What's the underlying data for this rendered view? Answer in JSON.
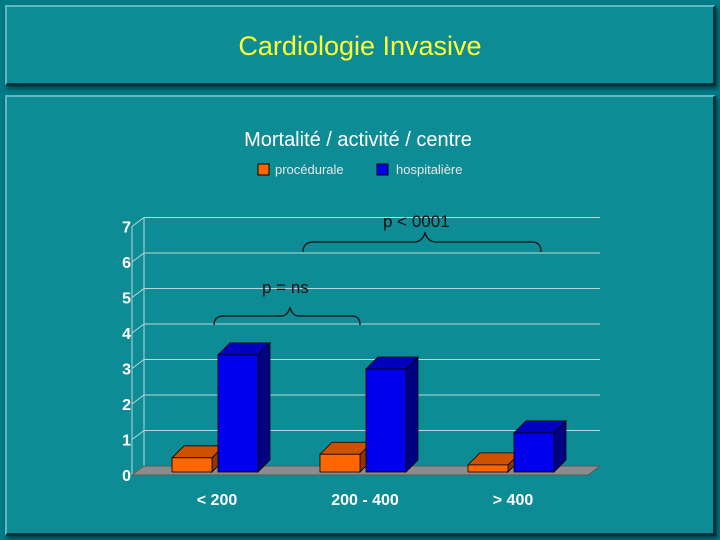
{
  "slide": {
    "title": "Cardiologie Invasive"
  },
  "chart_data": {
    "type": "bar",
    "title": "Mortalité / activité / centre",
    "categories": [
      "< 200",
      "200 - 400",
      "> 400"
    ],
    "series": [
      {
        "name": "procédurale",
        "color": "#ff6600",
        "values": [
          0.4,
          0.5,
          0.2
        ]
      },
      {
        "name": "hospitalière",
        "color": "#0000ee",
        "values": [
          3.3,
          2.9,
          1.1
        ]
      }
    ],
    "y_ticks": [
      "0",
      "1",
      "2",
      "3",
      "4",
      "5",
      "6",
      "7"
    ],
    "ylim": [
      0,
      7
    ],
    "grid": true,
    "legend": "top",
    "annotations": [
      {
        "text": "p < 0001"
      },
      {
        "text": "p = ns"
      }
    ]
  }
}
